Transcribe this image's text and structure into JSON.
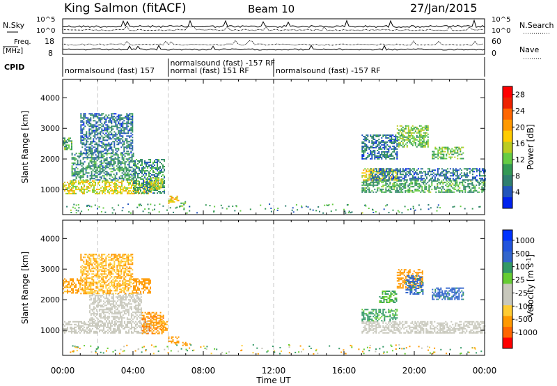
{
  "header": {
    "station": "King Salmon (fitACF)",
    "beam": "Beam 10",
    "date": "27/Jan/2015"
  },
  "colors": {
    "velocity_scale": [
      "#ff0000",
      "#ff6600",
      "#ff9900",
      "#ffcc33",
      "#c8c8bc",
      "#c8c8bc",
      "#66cc33",
      "#339966",
      "#3366cc",
      "#2255dd",
      "#0033ff"
    ],
    "power_scale": [
      "#0022ee",
      "#2255bb",
      "#2f7f6f",
      "#339955",
      "#66cc44",
      "#bbcc22",
      "#ffcc00",
      "#ff9900",
      "#ff6600",
      "#ee2200",
      "#ff0000"
    ],
    "trace": "#000000",
    "grid": "#c8c8c8"
  },
  "summary": {
    "nsky_label": "N.Sky",
    "nsky_ticks": [
      "10^5",
      "10^0"
    ],
    "nsearch_label": "N.Search",
    "nsearch_ticks": [
      "10^5",
      "10^0"
    ],
    "freq_label": "Freq.",
    "freq_unit": "[MHz]",
    "freq_ticks": [
      "18",
      "8"
    ],
    "nave_label": "Nave",
    "nave_ticks": [
      "60",
      "0"
    ],
    "cpid_label": "CPID",
    "cpid_segments": [
      {
        "text": "normalsound (fast) 157",
        "t0": 0,
        "t1": 6,
        "row": 2
      },
      {
        "text": "normalsound (fast) -157 RF",
        "t0": 6,
        "t1": 10,
        "row": 1
      },
      {
        "text": "normal (fast) 151 RF",
        "t0": 6,
        "t1": 12,
        "row": 2
      },
      {
        "text": "normalsound (fast) -157 RF",
        "t0": 12,
        "t1": 24,
        "row": 2
      }
    ]
  },
  "chart_data": [
    {
      "type": "heatmap",
      "panel": "power",
      "ylabel": "Slant Range [km]",
      "ylim": [
        180,
        4600
      ],
      "xlim": [
        0,
        24
      ],
      "y_ticks": [
        1000,
        2000,
        3000,
        4000
      ],
      "colorbar": {
        "label": "Power [dB]",
        "ticks": [
          "28",
          "24",
          "20",
          "16",
          "12",
          "8",
          "4"
        ],
        "range": [
          0,
          30
        ]
      },
      "regions": [
        {
          "t0": 0.0,
          "t1": 5.0,
          "r0": 850,
          "r1": 1300,
          "value": 16
        },
        {
          "t0": 0.5,
          "t1": 4.0,
          "r0": 1300,
          "r1": 2200,
          "value": 8
        },
        {
          "t0": 1.0,
          "t1": 4.0,
          "r0": 2200,
          "r1": 3500,
          "value": 6
        },
        {
          "t0": 0.0,
          "t1": 0.5,
          "r0": 2300,
          "r1": 2700,
          "value": 10
        },
        {
          "t0": 4.0,
          "t1": 5.8,
          "r0": 900,
          "r1": 2000,
          "value": 8
        },
        {
          "t0": 5.0,
          "t1": 5.7,
          "r0": 1000,
          "r1": 1400,
          "value": 16
        },
        {
          "t0": 6.0,
          "t1": 6.6,
          "r0": 550,
          "r1": 800,
          "value": 18
        },
        {
          "t0": 6.7,
          "t1": 7.0,
          "r0": 480,
          "r1": 620,
          "value": 12
        },
        {
          "t0": 17.0,
          "t1": 24.0,
          "r0": 900,
          "r1": 1300,
          "value": 10
        },
        {
          "t0": 17.0,
          "t1": 19.0,
          "r0": 1300,
          "r1": 1700,
          "value": 16
        },
        {
          "t0": 17.5,
          "t1": 24.0,
          "r0": 1300,
          "r1": 1700,
          "value": 6
        },
        {
          "t0": 19.0,
          "t1": 20.8,
          "r0": 2400,
          "r1": 3100,
          "value": 12
        },
        {
          "t0": 21.0,
          "t1": 22.8,
          "r0": 2000,
          "r1": 2400,
          "value": 12
        },
        {
          "t0": 17.0,
          "t1": 19.0,
          "r0": 2000,
          "r1": 2800,
          "value": 6
        }
      ]
    },
    {
      "type": "heatmap",
      "panel": "velocity",
      "ylabel": "Slant Range [km]",
      "xlabel": "Time UT",
      "ylim": [
        180,
        4600
      ],
      "xlim": [
        0,
        24
      ],
      "x_ticks": [
        "00:00",
        "04:00",
        "08:00",
        "12:00",
        "16:00",
        "20:00",
        "00:00"
      ],
      "y_ticks": [
        1000,
        2000,
        3000,
        4000
      ],
      "colorbar": {
        "label": "Velocity [m s",
        "ticks": [
          "1000",
          "500",
          "100",
          "25",
          "-25",
          "-100",
          "-500",
          "-1000"
        ]
      },
      "regions": [
        {
          "t0": 0.0,
          "t1": 5.0,
          "r0": 900,
          "r1": 1300,
          "value": 0
        },
        {
          "t0": 1.5,
          "t1": 4.5,
          "r0": 1300,
          "r1": 2200,
          "value": 0
        },
        {
          "t0": 0.0,
          "t1": 1.0,
          "r0": 2200,
          "r1": 2700,
          "value": -150
        },
        {
          "t0": 1.0,
          "t1": 4.0,
          "r0": 2200,
          "r1": 3500,
          "value": -100
        },
        {
          "t0": 4.0,
          "t1": 5.0,
          "r0": 2200,
          "r1": 2700,
          "value": -300
        },
        {
          "t0": 4.5,
          "t1": 5.7,
          "r0": 900,
          "r1": 1600,
          "value": -400
        },
        {
          "t0": 5.5,
          "t1": 5.9,
          "r0": 1000,
          "r1": 1300,
          "value": -120
        },
        {
          "t0": 6.0,
          "t1": 6.6,
          "r0": 550,
          "r1": 800,
          "value": -200
        },
        {
          "t0": 6.8,
          "t1": 7.2,
          "r0": 500,
          "r1": 620,
          "value": -300
        },
        {
          "t0": 17.0,
          "t1": 24.0,
          "r0": 900,
          "r1": 1300,
          "value": 0
        },
        {
          "t0": 17.0,
          "t1": 19.0,
          "r0": 1300,
          "r1": 1700,
          "value": 120
        },
        {
          "t0": 19.0,
          "t1": 20.5,
          "r0": 2400,
          "r1": 3000,
          "value": -300
        },
        {
          "t0": 19.5,
          "t1": 20.5,
          "r0": 2200,
          "r1": 2800,
          "value": 600
        },
        {
          "t0": 21.0,
          "t1": 22.8,
          "r0": 2000,
          "r1": 2400,
          "value": 700
        },
        {
          "t0": 18.0,
          "t1": 19.0,
          "r0": 1900,
          "r1": 2300,
          "value": 100
        }
      ]
    }
  ]
}
